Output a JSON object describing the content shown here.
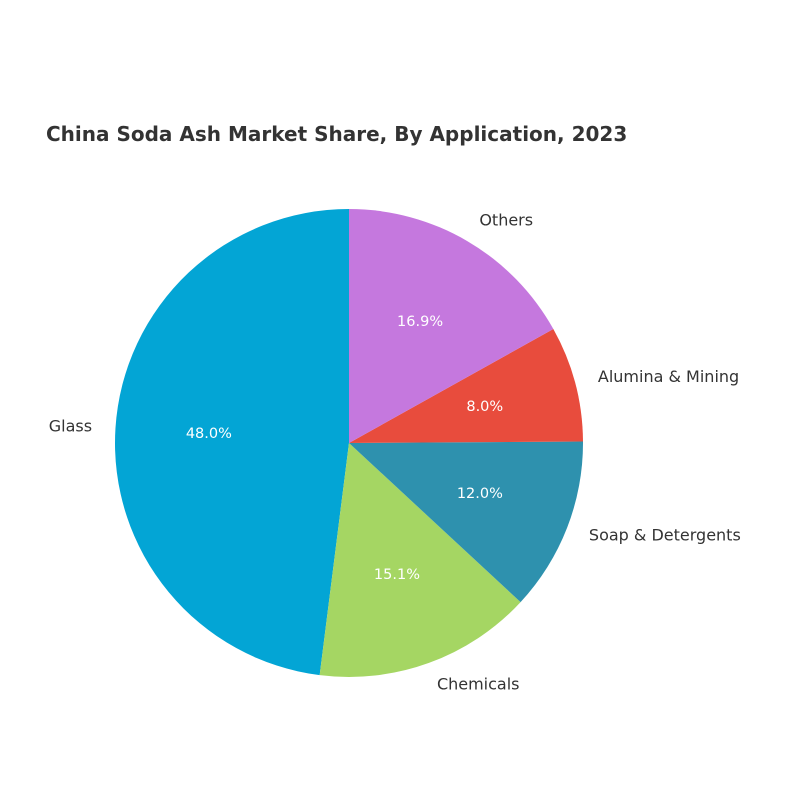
{
  "chart_data": {
    "type": "pie",
    "title": "China Soda Ash Market Share, By Application, 2023",
    "categories": [
      "Glass",
      "Chemicals",
      "Soap & Detergents",
      "Alumina & Mining",
      "Others"
    ],
    "values": [
      48.0,
      15.1,
      12.0,
      8.0,
      16.9
    ],
    "value_labels": [
      "48.0%",
      "15.1%",
      "12.0%",
      "8.0%",
      "16.9%"
    ],
    "colors": [
      "#03a5d5",
      "#a5d663",
      "#2e91ae",
      "#e84c3d",
      "#c578de"
    ]
  }
}
